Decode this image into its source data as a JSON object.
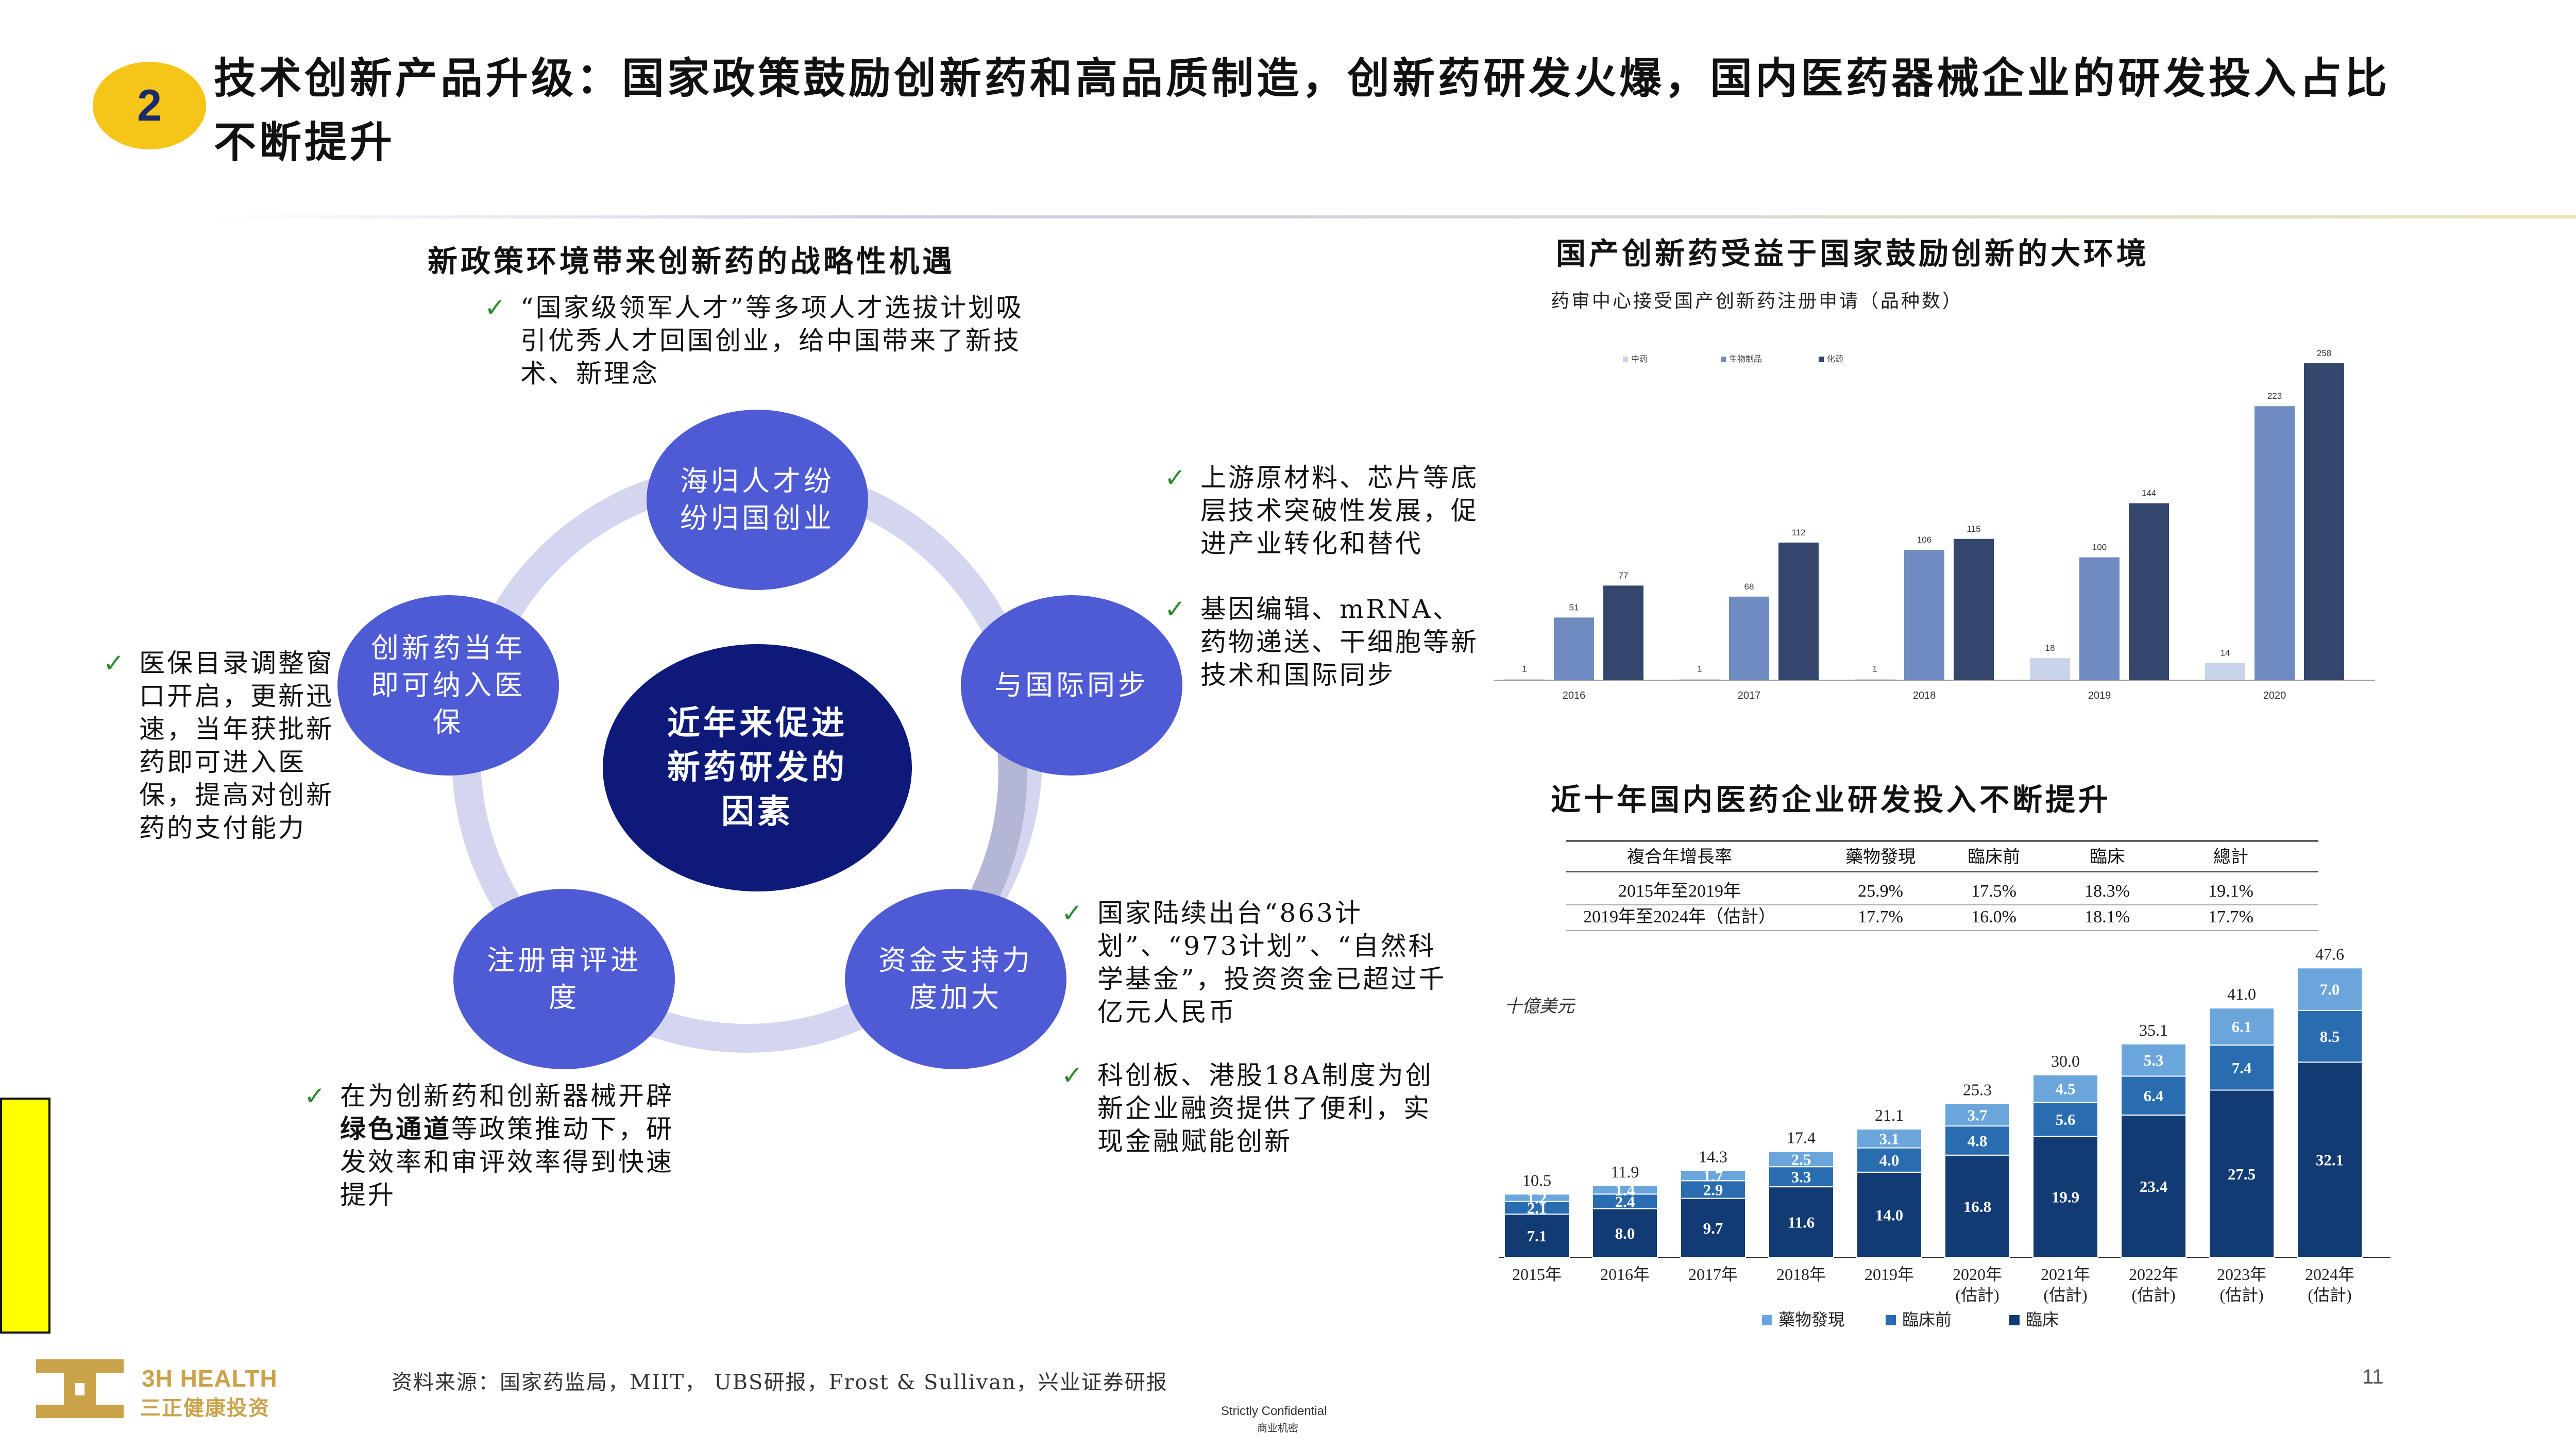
{
  "header": {
    "badge": "2",
    "title": "技术创新产品升级：国家政策鼓励创新药和高品质制造，创新药研发火爆，国内医药器械企业的研发投入占比不断提升"
  },
  "left": {
    "heading": "新政策环境带来创新药的战略性机遇",
    "center_label": "近年来促进新药研发的因素",
    "nodes": [
      {
        "label": "海归人才纷纷归国创业"
      },
      {
        "label": "与国际同步"
      },
      {
        "label": "资金支持力度加大"
      },
      {
        "label": "注册审评进度"
      },
      {
        "label": "创新药当年即可纳入医保"
      }
    ],
    "bullets": {
      "top": "“国家级领军人才”等多项人才选拔计划吸引优秀人才回国创业，给中国带来了新技术、新理念",
      "right1": "上游原材料、芯片等底层技术突破性发展，促进产业转化和替代",
      "right2": "基因编辑、mRNA、药物递送、干细胞等新技术和国际同步",
      "left": "医保目录调整窗口开启，更新迅速，当年获批新药即可进入医保，提高对创新药的支付能力",
      "bottom_right1": "国家陆续出台“863计划”、“973计划”、“自然科学基金”，投资资金已超过千亿元人民币",
      "bottom_right2": "科创板、港股18A制度为创新企业融资提供了便利，实现金融赋能创新",
      "bottom_left_pre": "在为创新药和创新器械开辟",
      "bottom_left_bold": "绿色通道",
      "bottom_left_post": "等政策推动下，研发效率和审评效率得到快速提升"
    }
  },
  "right_top": {
    "heading": "国产创新药受益于国家鼓励创新的大环境",
    "subtitle": "药审中心接受国产创新药注册申请（品种数）",
    "legend": [
      "中药",
      "生物制品",
      "化药"
    ],
    "colors": [
      "#c9d3ea",
      "#6f8bbf",
      "#34466b"
    ]
  },
  "right_bottom": {
    "heading": "近十年国内医药企业研发投入不断提升",
    "table": {
      "headers": [
        "複合年增長率",
        "藥物發現",
        "臨床前",
        "臨床",
        "總計"
      ],
      "rows": [
        [
          "2015年至2019年",
          "25.9%",
          "17.5%",
          "18.3%",
          "19.1%"
        ],
        [
          "2019年至2024年（估計）",
          "17.7%",
          "16.0%",
          "18.1%",
          "17.7%"
        ]
      ]
    },
    "unit": "十億美元",
    "legend": [
      "藥物發現",
      "臨床前",
      "臨床"
    ],
    "colors": [
      "#6aa6dc",
      "#2a6cb0",
      "#123b73"
    ]
  },
  "chart_data": [
    {
      "type": "bar",
      "title": "药审中心接受国产创新药注册申请（品种数）",
      "categories": [
        "2016",
        "2017",
        "2018",
        "2019",
        "2020"
      ],
      "series": [
        {
          "name": "中药",
          "values": [
            1,
            1,
            1,
            18,
            14
          ]
        },
        {
          "name": "生物制品",
          "values": [
            51,
            68,
            106,
            100,
            223
          ]
        },
        {
          "name": "化药",
          "values": [
            77,
            112,
            115,
            144,
            258
          ]
        }
      ],
      "ylim": [
        0,
        260
      ],
      "legend_position": "top-left"
    },
    {
      "type": "bar",
      "stacked": true,
      "ylabel": "十億美元",
      "categories": [
        "2015年",
        "2016年",
        "2017年",
        "2018年",
        "2019年",
        "2020年(估計)",
        "2021年(估計)",
        "2022年(估計)",
        "2023年(估計)",
        "2024年(估計)"
      ],
      "series": [
        {
          "name": "臨床",
          "values": [
            7.1,
            8.0,
            9.7,
            11.6,
            14.0,
            16.8,
            19.9,
            23.4,
            27.5,
            32.1
          ]
        },
        {
          "name": "臨床前",
          "values": [
            2.1,
            2.4,
            2.9,
            3.3,
            4.0,
            4.8,
            5.6,
            6.4,
            7.4,
            8.5
          ]
        },
        {
          "name": "藥物發現",
          "values": [
            1.2,
            1.4,
            1.7,
            2.5,
            3.1,
            3.7,
            4.5,
            5.3,
            6.1,
            7.0
          ]
        }
      ],
      "totals": [
        10.5,
        11.9,
        14.3,
        17.4,
        21.1,
        25.3,
        30.0,
        35.1,
        41.0,
        47.6
      ],
      "ylim": [
        0,
        50
      ],
      "legend_position": "bottom"
    }
  ],
  "footer": {
    "logo_main": "3H HEALTH",
    "logo_sub": "三正健康投资",
    "source": "资料来源：国家药监局，MIIT， UBS研报，Frost & Sullivan，兴业证券研报",
    "page": "11",
    "conf_en": "Strictly Confidential",
    "conf_cn": "商业机密"
  }
}
